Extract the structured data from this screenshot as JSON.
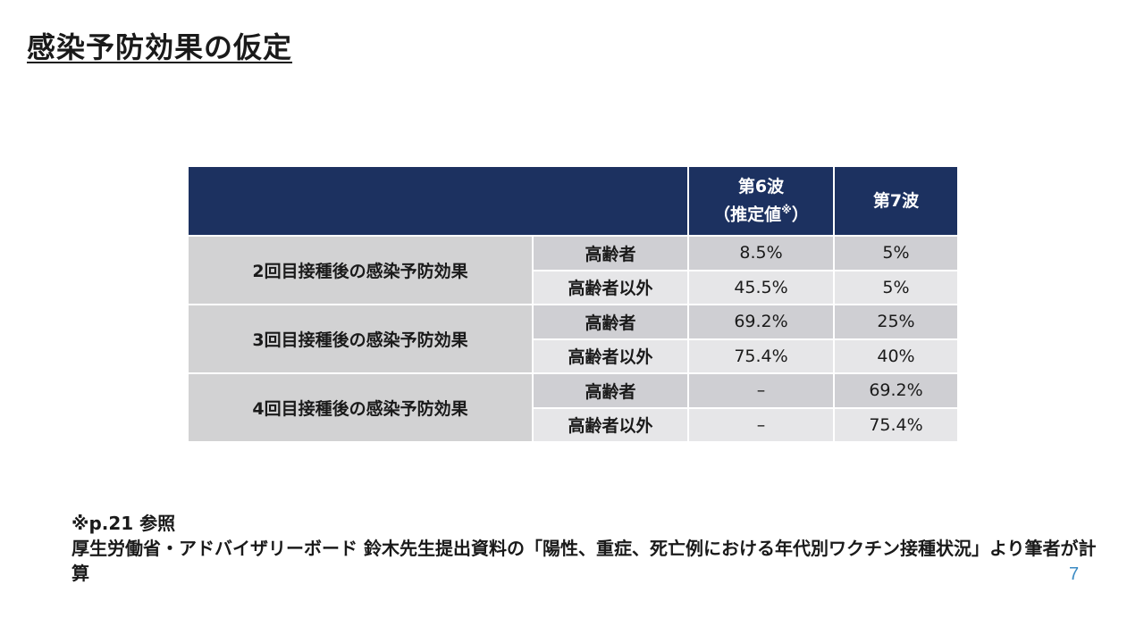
{
  "title": "感染予防効果の仮定",
  "table": {
    "header": {
      "wave6_line1": "第6波",
      "wave6_line2": "（推定値",
      "wave6_mark": "※",
      "wave6_close": "）",
      "wave7": "第7波"
    },
    "groups": [
      {
        "label": "2回目接種後の感染予防効果",
        "rows": [
          {
            "subgroup": "高齢者",
            "wave6": "8.5%",
            "wave7": "5%"
          },
          {
            "subgroup": "高齢者以外",
            "wave6": "45.5%",
            "wave7": "5%"
          }
        ]
      },
      {
        "label": "3回目接種後の感染予防効果",
        "rows": [
          {
            "subgroup": "高齢者",
            "wave6": "69.2%",
            "wave7": "25%"
          },
          {
            "subgroup": "高齢者以外",
            "wave6": "75.4%",
            "wave7": "40%"
          }
        ]
      },
      {
        "label": "4回目接種後の感染予防効果",
        "rows": [
          {
            "subgroup": "高齢者",
            "wave6": "–",
            "wave7": "69.2%"
          },
          {
            "subgroup": "高齢者以外",
            "wave6": "–",
            "wave7": "75.4%"
          }
        ]
      }
    ]
  },
  "footnote": {
    "ref": "※p.21 参照",
    "source": "厚生労働省・アドバイザリーボード 鈴木先生提出資料の「陽性、重症、死亡例における年代別ワクチン接種状況」より筆者が計算"
  },
  "page_number": "7",
  "colors": {
    "header_bg": "#1c3160",
    "group_bg": "#d2d2d3",
    "row_dark": "#cfcfd3",
    "row_light": "#e6e6e8",
    "page_number": "#3b8bc4"
  }
}
